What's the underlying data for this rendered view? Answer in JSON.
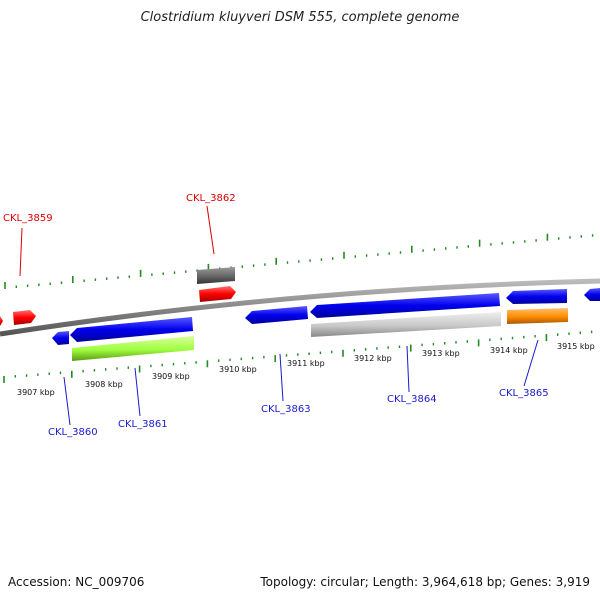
{
  "title": "Clostridium kluyveri DSM 555, complete genome",
  "footer": {
    "accession": "Accession: NC_009706",
    "summary": "Topology: circular; Length: 3,964,618 bp; Genes: 3,919"
  },
  "scale_labels": [
    "3907 kbp",
    "3908 kbp",
    "3909 kbp",
    "3910 kbp",
    "3911 kbp",
    "3912 kbp",
    "3913 kbp",
    "3914 kbp",
    "3915 kbp"
  ],
  "gene_labels": [
    "CKL_3859",
    "CKL_3862",
    "CKL_3860",
    "CKL_3861",
    "CKL_3863",
    "CKL_3864",
    "CKL_3865"
  ],
  "colors": {
    "forward_cds": "#ff0000",
    "reverse_cds": "#0000ee",
    "backbone": "#888888",
    "tick": "#228b22",
    "label_forward": "#dd0000",
    "label_reverse": "#1a1acc",
    "gene_green": "#a0ff40",
    "gene_grey": "#c8c8c8",
    "gene_orange": "#ff8c00",
    "gene_darkgrey": "#666666"
  }
}
